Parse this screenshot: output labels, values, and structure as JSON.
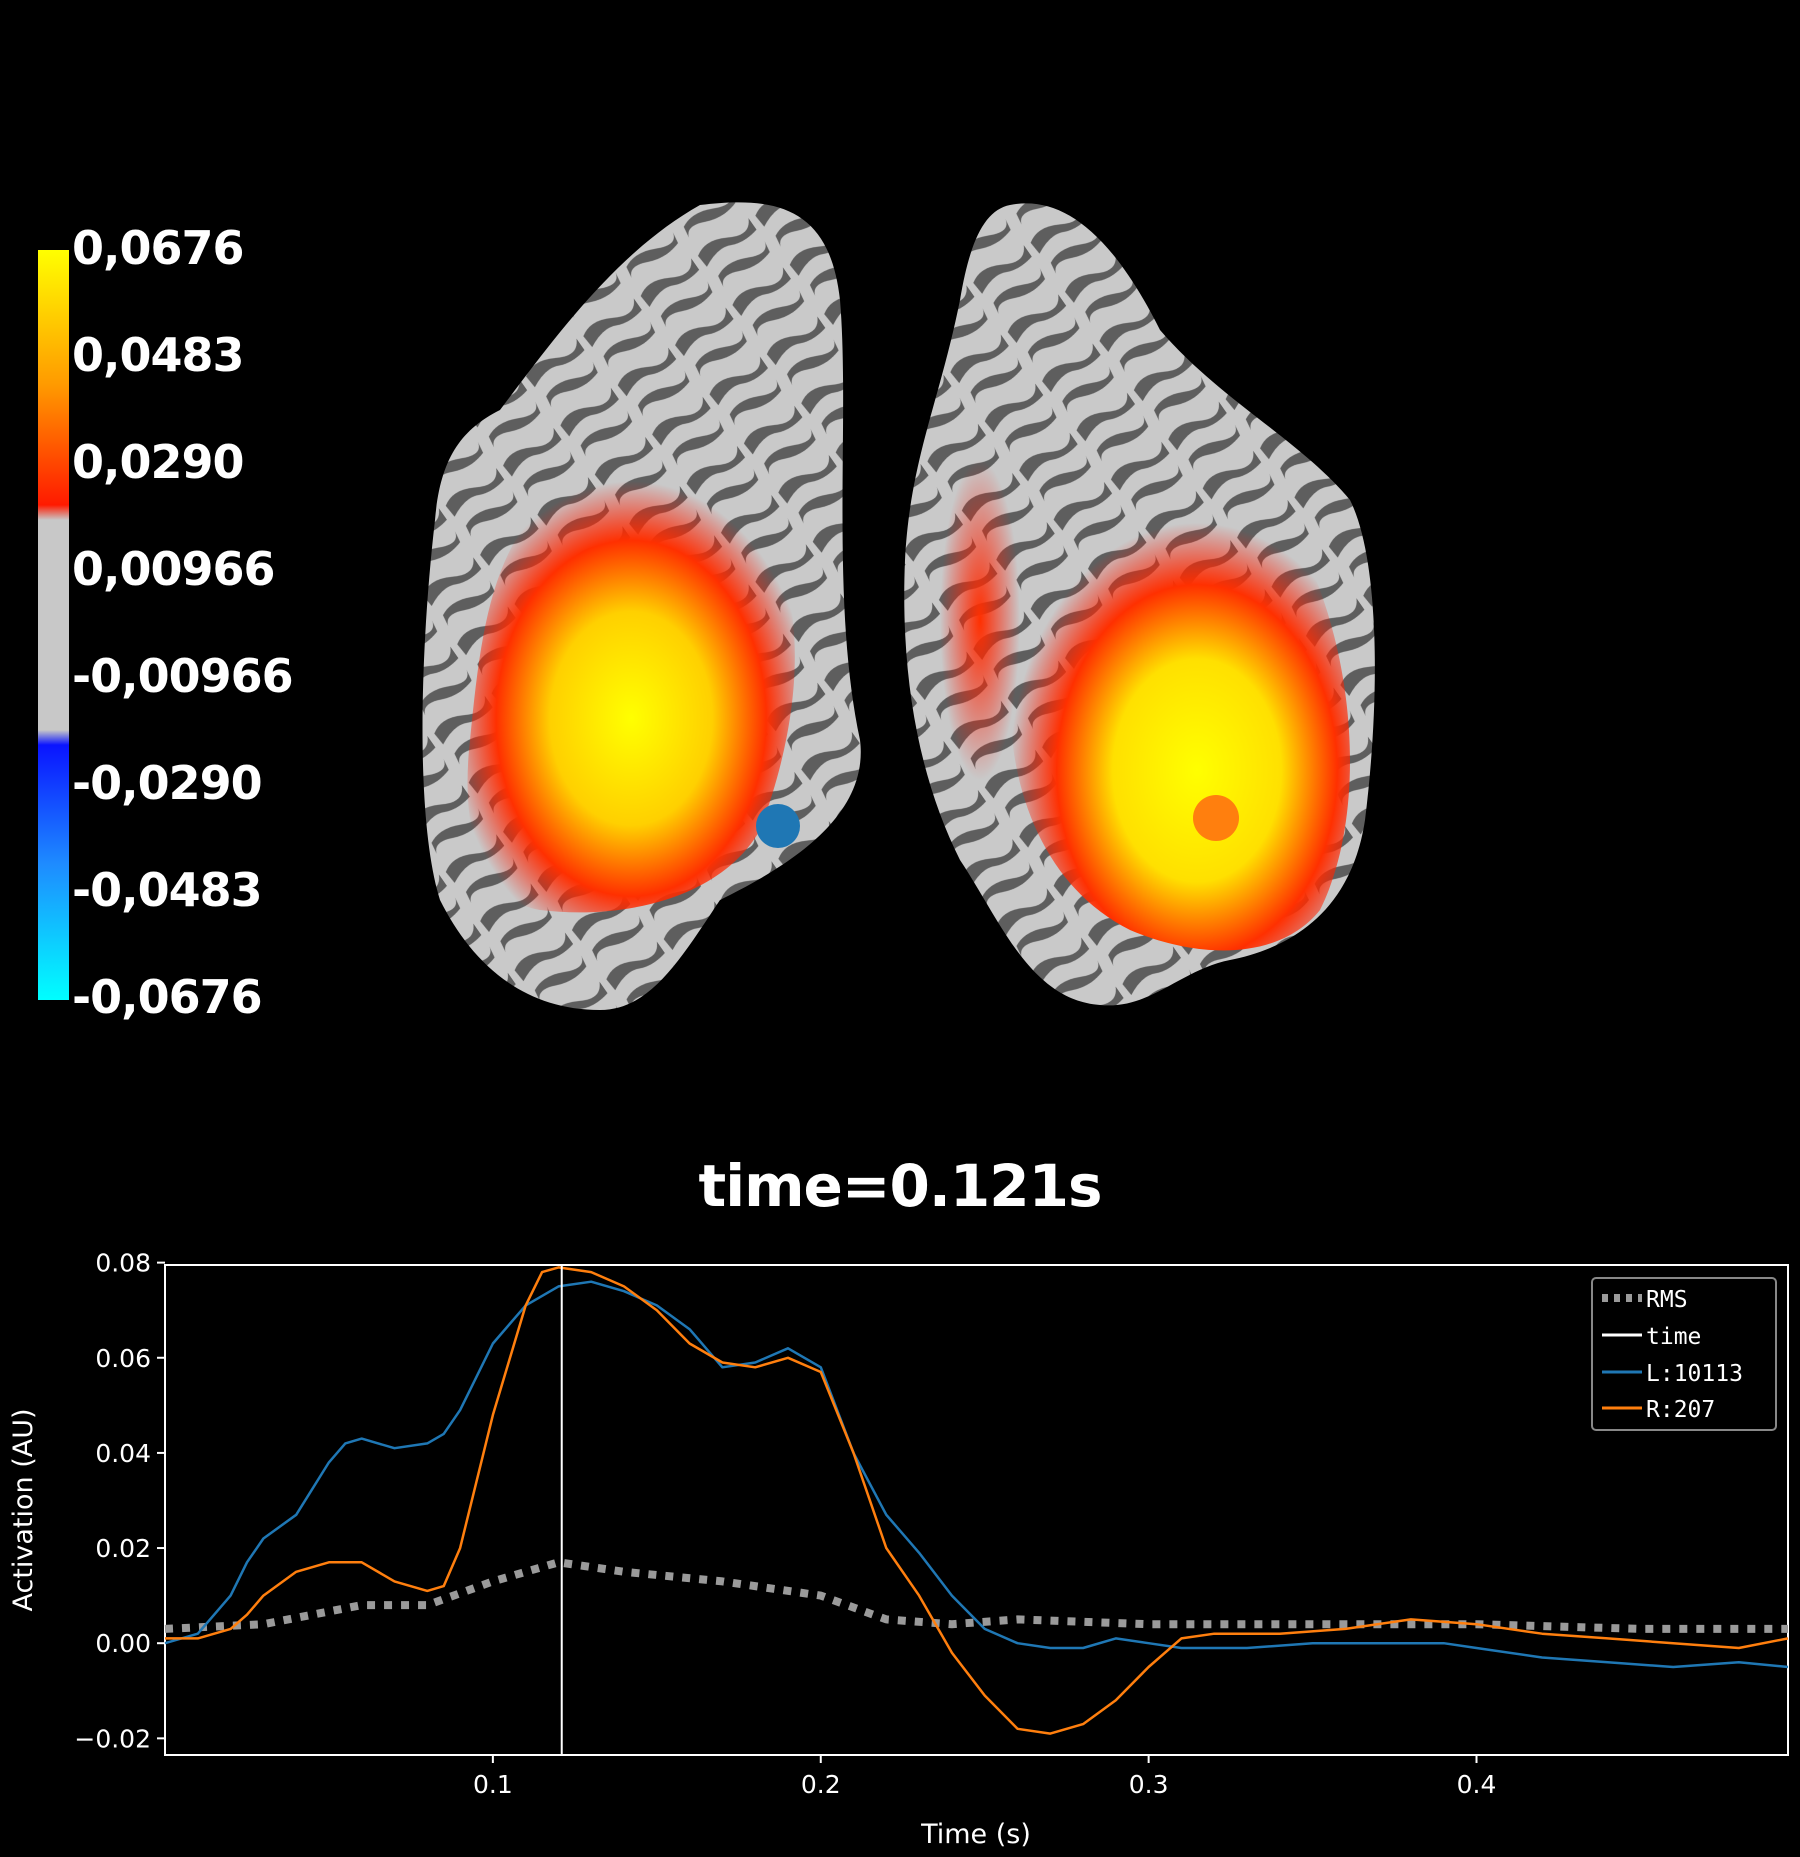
{
  "colorbar": {
    "labels": [
      "0,0676",
      "0,0483",
      "0,0290",
      "0,00966",
      "-0,00966",
      "-0,0290",
      "-0,0483",
      "-0,0676"
    ],
    "colors": {
      "top": "#ffff00",
      "mid_pos": "#ff8000",
      "red": "#ff1a00",
      "gray": "#c8c8c8",
      "blue": "#0a14ff",
      "mid_neg": "#1e8cff",
      "bottom": "#00ffff"
    }
  },
  "brain": {
    "left_hemisphere": {
      "vertex_marker_color": "#1f77b4"
    },
    "right_hemisphere": {
      "vertex_marker_color": "#ff7f0e"
    }
  },
  "title": "time=0.121s",
  "chart_data": {
    "type": "line",
    "xlabel": "Time (s)",
    "ylabel": "Activation (AU)",
    "xlim": [
      0.0,
      0.495
    ],
    "ylim": [
      -0.0235,
      0.0795
    ],
    "xticks": [
      0.1,
      0.2,
      0.3,
      0.4
    ],
    "xtick_labels": [
      "0.1",
      "0.2",
      "0.3",
      "0.4"
    ],
    "yticks": [
      -0.02,
      0.0,
      0.02,
      0.04,
      0.06,
      0.08
    ],
    "ytick_labels": [
      "−0.02",
      "0.00",
      "0.02",
      "0.04",
      "0.06",
      "0.08"
    ],
    "time_marker": 0.121,
    "legend": {
      "position": "top-right",
      "entries": [
        "RMS",
        "time",
        "L:10113",
        "R:207"
      ]
    },
    "series": [
      {
        "name": "RMS",
        "color": "#9a9a9a",
        "style": "dotted",
        "x": [
          0.0,
          0.03,
          0.06,
          0.08,
          0.1,
          0.12,
          0.14,
          0.17,
          0.2,
          0.22,
          0.24,
          0.26,
          0.3,
          0.35,
          0.4,
          0.45,
          0.495
        ],
        "y": [
          0.003,
          0.004,
          0.008,
          0.008,
          0.013,
          0.017,
          0.015,
          0.013,
          0.01,
          0.005,
          0.004,
          0.005,
          0.004,
          0.004,
          0.004,
          0.003,
          0.003
        ]
      },
      {
        "name": "L:10113",
        "color": "#1f77b4",
        "style": "solid",
        "x": [
          0.0,
          0.01,
          0.02,
          0.025,
          0.03,
          0.04,
          0.05,
          0.055,
          0.06,
          0.07,
          0.08,
          0.085,
          0.09,
          0.1,
          0.11,
          0.12,
          0.13,
          0.14,
          0.15,
          0.16,
          0.17,
          0.18,
          0.19,
          0.2,
          0.21,
          0.22,
          0.23,
          0.24,
          0.25,
          0.26,
          0.27,
          0.28,
          0.29,
          0.3,
          0.31,
          0.33,
          0.35,
          0.37,
          0.39,
          0.4,
          0.42,
          0.44,
          0.46,
          0.48,
          0.495
        ],
        "y": [
          0.0,
          0.002,
          0.01,
          0.017,
          0.022,
          0.027,
          0.038,
          0.042,
          0.043,
          0.041,
          0.042,
          0.044,
          0.049,
          0.063,
          0.071,
          0.075,
          0.076,
          0.074,
          0.071,
          0.066,
          0.058,
          0.059,
          0.062,
          0.058,
          0.04,
          0.027,
          0.019,
          0.01,
          0.003,
          0.0,
          -0.001,
          -0.001,
          0.001,
          0.0,
          -0.001,
          -0.001,
          0.0,
          0.0,
          0.0,
          -0.001,
          -0.003,
          -0.004,
          -0.005,
          -0.004,
          -0.005
        ]
      },
      {
        "name": "R:207",
        "color": "#ff7f0e",
        "style": "solid",
        "x": [
          0.0,
          0.01,
          0.02,
          0.025,
          0.03,
          0.04,
          0.05,
          0.06,
          0.07,
          0.08,
          0.085,
          0.09,
          0.1,
          0.11,
          0.115,
          0.12,
          0.13,
          0.14,
          0.15,
          0.16,
          0.17,
          0.18,
          0.19,
          0.2,
          0.21,
          0.22,
          0.23,
          0.24,
          0.25,
          0.26,
          0.27,
          0.28,
          0.29,
          0.3,
          0.31,
          0.32,
          0.34,
          0.36,
          0.38,
          0.4,
          0.42,
          0.44,
          0.46,
          0.48,
          0.495
        ],
        "y": [
          0.001,
          0.001,
          0.003,
          0.006,
          0.01,
          0.015,
          0.017,
          0.017,
          0.013,
          0.011,
          0.012,
          0.02,
          0.048,
          0.071,
          0.078,
          0.079,
          0.078,
          0.075,
          0.07,
          0.063,
          0.059,
          0.058,
          0.06,
          0.057,
          0.04,
          0.02,
          0.01,
          -0.002,
          -0.011,
          -0.018,
          -0.019,
          -0.017,
          -0.012,
          -0.005,
          0.001,
          0.002,
          0.002,
          0.003,
          0.005,
          0.004,
          0.002,
          0.001,
          0.0,
          -0.001,
          0.001
        ]
      }
    ]
  }
}
